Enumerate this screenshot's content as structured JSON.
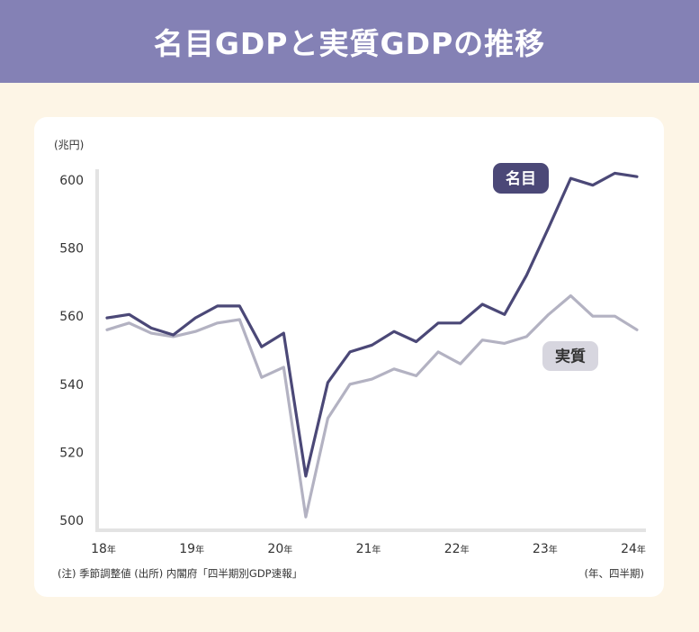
{
  "title": "名目GDPと実質GDPの推移",
  "colors": {
    "banner": "#8481b5",
    "background": "#fdf5e6",
    "nominal": "#4b4877",
    "real": "#b3b2c2",
    "nominal_label_bg": "#4b4877",
    "real_label_bg": "#d7d6df"
  },
  "unit_label": "(兆円)",
  "note_left": "(注) 季節調整値 (出所) 内閣府「四半期別GDP速報」",
  "note_right": "(年、四半期)",
  "chart_data": {
    "type": "line",
    "ylim": [
      500,
      600
    ],
    "yticks": [
      "600",
      "580",
      "560",
      "540",
      "520",
      "500"
    ],
    "xticks": [
      {
        "label": "18",
        "suffix": "年"
      },
      {
        "label": "19",
        "suffix": "年"
      },
      {
        "label": "20",
        "suffix": "年"
      },
      {
        "label": "21",
        "suffix": "年"
      },
      {
        "label": "22",
        "suffix": "年"
      },
      {
        "label": "23",
        "suffix": "年"
      },
      {
        "label": "24",
        "suffix": "年"
      }
    ],
    "grid": false,
    "series": [
      {
        "name": "名目",
        "color": "#4b4877",
        "values": [
          559.5,
          560.5,
          556.5,
          554.5,
          559.5,
          563,
          563,
          551,
          555,
          513,
          540.5,
          549.5,
          551.5,
          555.5,
          552.5,
          558,
          558,
          563.5,
          560.5,
          572,
          586,
          600.5,
          598.5,
          602,
          601
        ]
      },
      {
        "name": "実質",
        "color": "#b3b2c2",
        "values": [
          556,
          558,
          555,
          554,
          555.5,
          558,
          559,
          542,
          545,
          501,
          530,
          540,
          541.5,
          544.5,
          542.5,
          549.5,
          546,
          553,
          552,
          554,
          560.5,
          566,
          560,
          560,
          556
        ]
      }
    ]
  }
}
